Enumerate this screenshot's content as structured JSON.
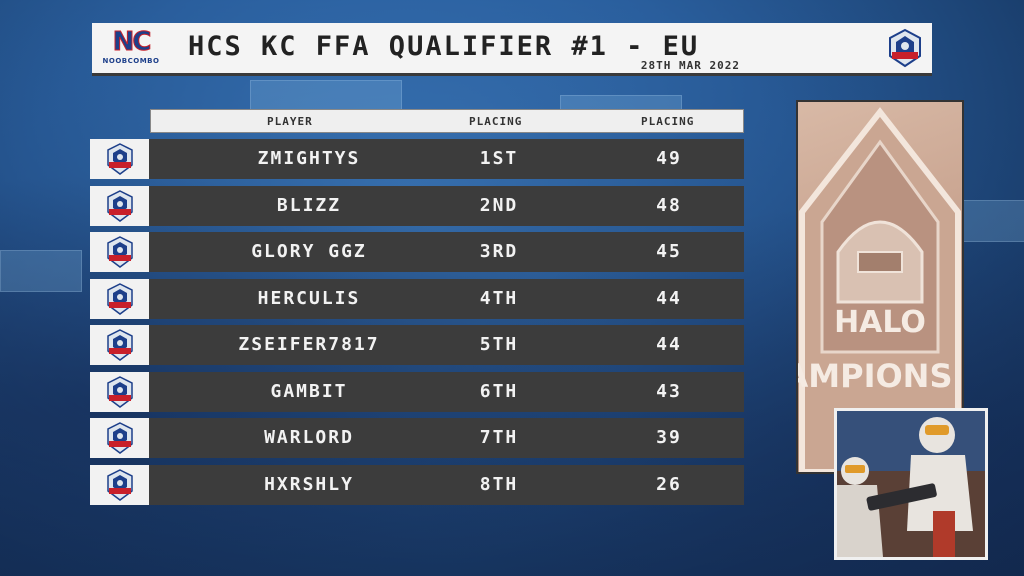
{
  "header": {
    "logo_text": "NC",
    "logo_sub": "NOOBCOMBO",
    "title": "HCS KC FFA QUALIFIER #1 - EU",
    "date": "28TH MAR 2022"
  },
  "table": {
    "columns": [
      "PLAYER",
      "PLACING",
      "PLACING"
    ],
    "rows": [
      {
        "player": "ZMIGHTYS",
        "placing": "1ST",
        "points": "49"
      },
      {
        "player": "BLIZZ",
        "placing": "2ND",
        "points": "48"
      },
      {
        "player": "GLORY GGZ",
        "placing": "3RD",
        "points": "45"
      },
      {
        "player": "HERCULIS",
        "placing": "4TH",
        "points": "44"
      },
      {
        "player": "ZSEIFER7817",
        "placing": "5TH",
        "points": "44"
      },
      {
        "player": "GAMBIT",
        "placing": "6TH",
        "points": "43"
      },
      {
        "player": "WARLORD",
        "placing": "7TH",
        "points": "39"
      },
      {
        "player": "HXRSHLY",
        "placing": "8TH",
        "points": "26"
      }
    ]
  },
  "photo": {
    "banner_text_1": "HALO",
    "banner_text_2": "AMPIONS"
  },
  "colors": {
    "row_bg": "#3c3c3c",
    "header_bg": "#f4f4f4",
    "accent_red": "#c8202a",
    "accent_blue": "#1d3f8a"
  },
  "icons": {
    "row_emblem": "hcs-championship-emblem-icon",
    "header_badge": "hcs-championship-emblem-icon"
  }
}
